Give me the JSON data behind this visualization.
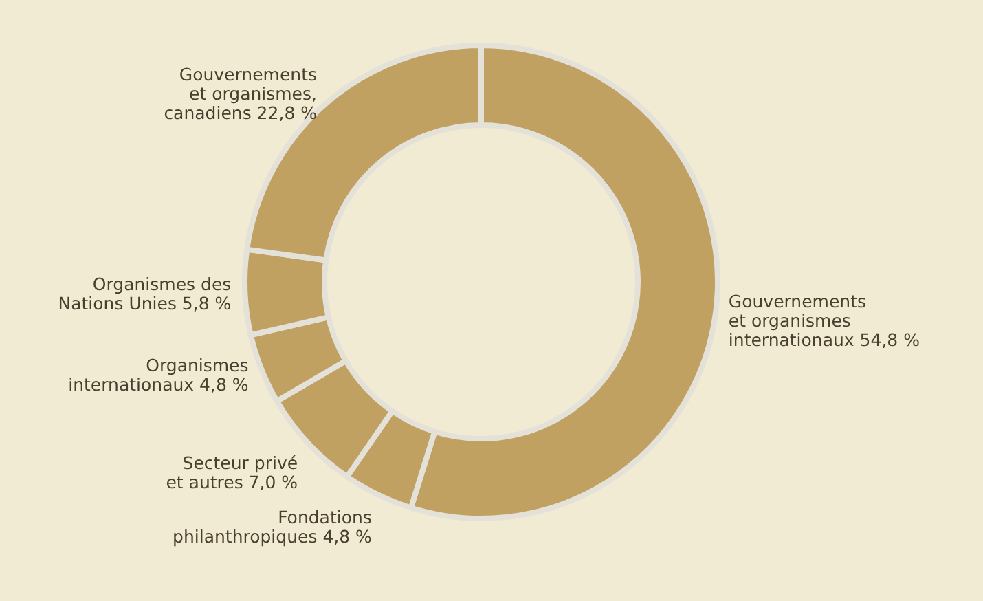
{
  "chart_data": {
    "type": "donut",
    "categories": [
      "Gouvernements et organismes internationaux",
      "Fondations philanthropiques",
      "Secteur privé et autres",
      "Organismes internationaux",
      "Organismes des Nations Unies",
      "Gouvernements et organismes, canadiens"
    ],
    "values": [
      54.8,
      4.8,
      7.0,
      4.8,
      5.8,
      22.8
    ],
    "colors": [
      "#c0a161",
      "#c0a161",
      "#c0a161",
      "#c0a161",
      "#c0a161",
      "#c0a161"
    ],
    "value_labels": [
      "54,8 %",
      "4,8 %",
      "7,0 %",
      "4,8 %",
      "5,8 %",
      "22,8 %"
    ]
  }
}
